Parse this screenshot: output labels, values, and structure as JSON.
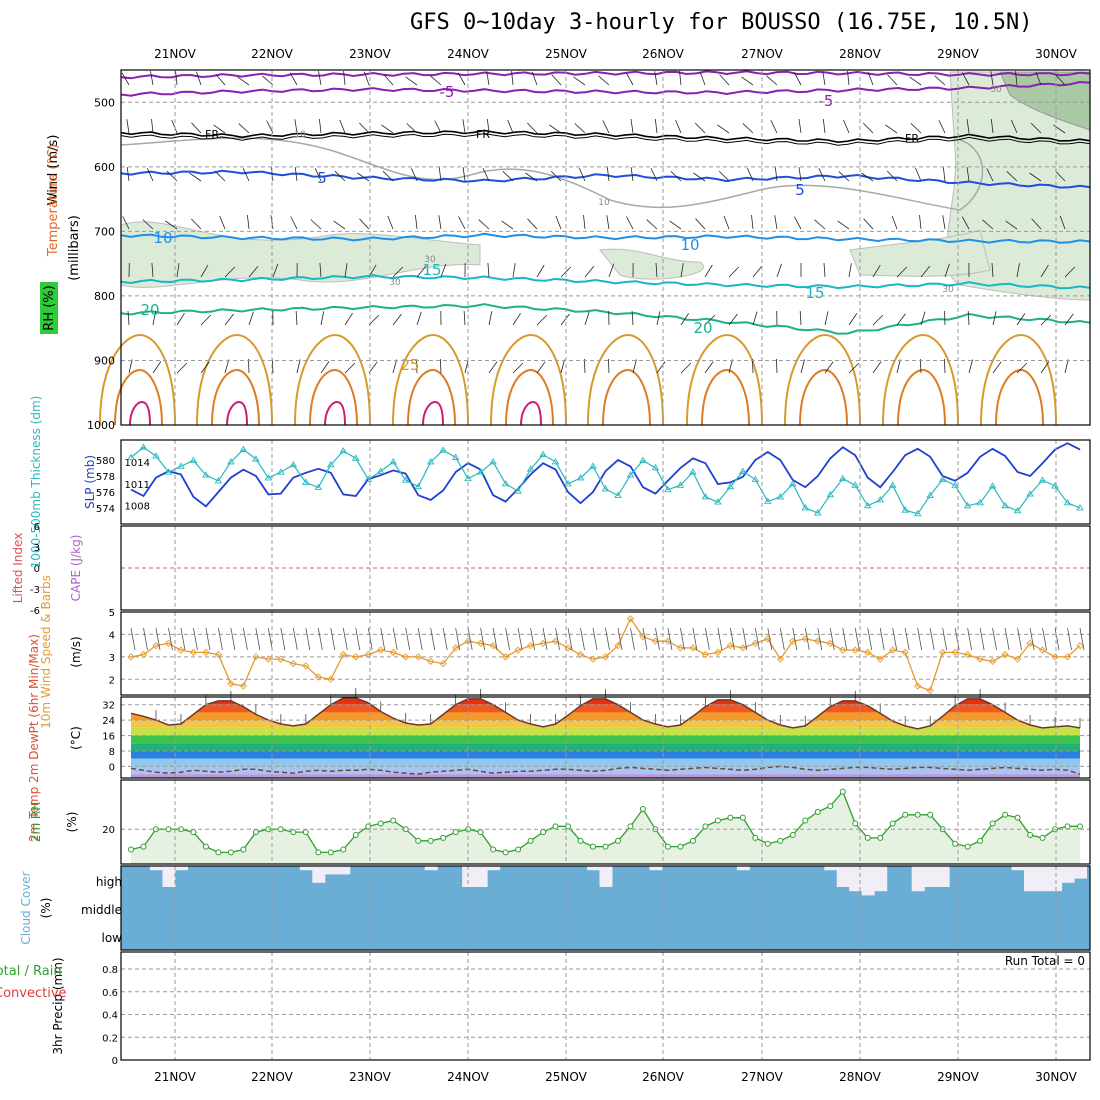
{
  "title": "GFS 0~10day 3-hourly for BOUSSO (16.75E, 10.5N)",
  "colors": {
    "grid": "#9a9a9a",
    "temperature_label": "#e0682c",
    "wind_label": "#000000",
    "rh_fill": "#dcebd8",
    "rh_dark": "#a9c8a4",
    "purple": "#8b1fb0",
    "black": "#000000",
    "blue": "#1f4ed8",
    "lightblue": "#1e90e8",
    "cyan": "#17b7c4",
    "teal": "#1fb08a",
    "thickness": "#1f3fd0",
    "slp": "#28b9c0",
    "li_zero": "#e06060",
    "wind10m": "#e59a2e",
    "cloud": "#6aaed6",
    "rh2m_line": "#2ea02e",
    "rh2m_fill": "#e6f1e2"
  },
  "chart_data": {
    "x_tick_labels": [
      "21NOV",
      "22NOV",
      "23NOV",
      "24NOV",
      "25NOV",
      "26NOV",
      "27NOV",
      "28NOV",
      "29NOV",
      "30NOV"
    ],
    "time_step_hours": 3,
    "panels": [
      {
        "id": "upper_air",
        "type": "contour",
        "ylabel_wind": "Wind (m/s)",
        "ylabel_temp": "Temperature (°C)",
        "ylabel_rh": "RH (%)",
        "ylabel_units": "(millibars)",
        "yticks": [
          500,
          600,
          700,
          800,
          900,
          1000
        ],
        "ylim": [
          450,
          1000
        ],
        "isotherm_labels": [
          {
            "text": "-5",
            "series": "purple"
          },
          {
            "text": "-5",
            "series": "purple"
          },
          {
            "text": "FR",
            "series": "black"
          },
          {
            "text": "FR",
            "series": "black"
          },
          {
            "text": "FR",
            "series": "black"
          },
          {
            "text": "5",
            "series": "blue"
          },
          {
            "text": "5",
            "series": "blue"
          },
          {
            "text": "10",
            "series": "lightblue"
          },
          {
            "text": "10",
            "series": "lightblue"
          },
          {
            "text": "15",
            "series": "cyan"
          },
          {
            "text": "15",
            "series": "cyan"
          },
          {
            "text": "20",
            "series": "teal"
          },
          {
            "text": "20",
            "series": "teal"
          },
          {
            "text": "25",
            "series": "orange"
          }
        ],
        "rh_labels": [
          "10",
          "10",
          "30",
          "30",
          "30",
          "30"
        ],
        "isotherms": [
          {
            "name": "purple_-5",
            "level": [
              488,
              483,
              480,
              482,
              484,
              485,
              481,
              478,
              470
            ]
          },
          {
            "name": "purple_top",
            "level": [
              461,
              458,
              457,
              456,
              455,
              454,
              455,
              457,
              456
            ]
          },
          {
            "name": "FR",
            "level": [
              547,
              552,
              548,
              546,
              550,
              556,
              560,
              552,
              560
            ]
          },
          {
            "name": "5C",
            "level": [
              610,
              608,
              617,
              622,
              613,
              620,
              614,
              625,
              632
            ]
          },
          {
            "name": "10C",
            "level": [
              706,
              710,
              712,
              706,
              710,
              708,
              712,
              715,
              716
            ]
          },
          {
            "name": "15C",
            "level": [
              778,
              775,
              770,
              772,
              778,
              783,
              786,
              781,
              788
            ]
          },
          {
            "name": "20C",
            "level": [
              827,
              822,
              818,
              815,
              825,
              840,
              858,
              830,
              842
            ]
          }
        ]
      },
      {
        "id": "thickness_slp",
        "type": "line",
        "ylabel_left": "1000-500mb Thickness (dm)",
        "ylabel_right": "SLP (mb)",
        "left_ticks": [
          574,
          576,
          578,
          580
        ],
        "right_ticks": [
          1008,
          1011,
          1014
        ],
        "series": [
          {
            "name": "Thickness",
            "axis": "left",
            "values": [
              576.3,
              575.5,
              577.8,
              578.6,
              578.2,
              575.4,
              574.2,
              576.0,
              577.8,
              578.8,
              578.0,
              575.7,
              575.8,
              577.8,
              578.4,
              578.9,
              578.4,
              575.7,
              575.5,
              577.6,
              578.1,
              578.7,
              578.3,
              575.6,
              575.0,
              576.2,
              578.5,
              579.6,
              578.8,
              575.6,
              574.8,
              576.4,
              578.2,
              579.6,
              578.8,
              576.0,
              574.6,
              576.0,
              578.6,
              580.0,
              579.2,
              576.6,
              575.8,
              577.4,
              579.0,
              580.2,
              579.6,
              577.0,
              577.2,
              577.9,
              580.0,
              581.0,
              580.0,
              577.5,
              576.6,
              578.0,
              580.2,
              581.6,
              580.6,
              577.8,
              576.6,
              578.5,
              580.6,
              581.4,
              580.4,
              578.0,
              577.4,
              578.4,
              580.4,
              581.4,
              580.5,
              578.5,
              578.0,
              579.6,
              581.3,
              582.1,
              581.3
            ]
          },
          {
            "name": "SLP",
            "axis": "right",
            "values": [
              1014.6,
              1016.0,
              1014.8,
              1012.6,
              1013.4,
              1014.2,
              1012.2,
              1011.4,
              1014.0,
              1015.7,
              1014.4,
              1011.8,
              1012.6,
              1013.6,
              1011.2,
              1010.5,
              1013.6,
              1015.5,
              1014.5,
              1011.6,
              1012.7,
              1014.0,
              1011.5,
              1010.6,
              1014.0,
              1015.6,
              1014.6,
              1011.7,
              1012.6,
              1014.0,
              1011.0,
              1010.0,
              1013.0,
              1015.0,
              1014.0,
              1011.0,
              1011.8,
              1013.4,
              1010.3,
              1009.4,
              1012.2,
              1014.2,
              1013.2,
              1010.2,
              1010.8,
              1012.6,
              1009.2,
              1008.5,
              1010.6,
              1012.7,
              1011.6,
              1008.6,
              1009.2,
              1011.0,
              1007.7,
              1007.0,
              1009.5,
              1011.7,
              1010.8,
              1008.0,
              1008.8,
              1010.8,
              1007.4,
              1006.9,
              1009.4,
              1011.6,
              1010.8,
              1008.0,
              1008.4,
              1010.7,
              1008.0,
              1007.3,
              1009.6,
              1011.5,
              1010.7,
              1008.4,
              1007.7
            ]
          }
        ]
      },
      {
        "id": "stability",
        "type": "line",
        "ylabel_left": "Lifted Index",
        "ylabel_right": "CAPE (J/kg)",
        "left_ticks": [
          "-6",
          "-3",
          "0",
          "3",
          "6"
        ],
        "right_ticks": [],
        "li_zero_line": 0
      },
      {
        "id": "wind10m",
        "type": "line",
        "ylabel": "10m Wind Speed & Barbs",
        "ylabel_units": "(m/s)",
        "yticks": [
          2,
          3,
          4,
          5
        ],
        "ylim": [
          1.3,
          5
        ],
        "series": [
          {
            "name": "Speed",
            "values": [
              3.0,
              3.1,
              3.5,
              3.6,
              3.3,
              3.2,
              3.2,
              3.1,
              1.8,
              1.7,
              3.0,
              2.9,
              2.9,
              2.7,
              2.6,
              2.1,
              2.0,
              3.1,
              3.0,
              3.1,
              3.3,
              3.2,
              3.0,
              3.0,
              2.8,
              2.7,
              3.4,
              3.7,
              3.6,
              3.5,
              3.0,
              3.3,
              3.5,
              3.6,
              3.7,
              3.4,
              3.1,
              2.9,
              3.0,
              3.5,
              4.7,
              3.9,
              3.7,
              3.7,
              3.4,
              3.4,
              3.1,
              3.2,
              3.5,
              3.4,
              3.6,
              3.8,
              2.9,
              3.7,
              3.8,
              3.7,
              3.6,
              3.3,
              3.3,
              3.2,
              2.9,
              3.3,
              3.2,
              1.7,
              1.5,
              3.2,
              3.2,
              3.1,
              2.9,
              2.8,
              3.1,
              2.9,
              3.6,
              3.3,
              3.0,
              3.0,
              3.5
            ]
          }
        ]
      },
      {
        "id": "temp2m",
        "type": "area",
        "ylabel": "2m Temp 2m DewPt (6hr Min/Max)",
        "ylabel_units": "(°C)",
        "yticks": [
          0,
          8,
          16,
          24,
          32
        ],
        "ylim": [
          -6,
          36
        ],
        "series": [
          {
            "name": "Temp",
            "values": [
              27.5,
              26,
              24,
              21.5,
              22,
              27,
              32,
              34,
              34,
              31,
              27,
              24,
              22,
              21,
              22,
              27,
              32,
              35.5,
              35.5,
              33,
              28.5,
              25,
              22.5,
              21.5,
              22,
              27,
              32,
              35,
              35,
              32,
              28,
              24,
              22,
              20.5,
              22,
              26.5,
              31.5,
              35,
              35,
              32,
              28,
              24,
              22,
              20.5,
              21.5,
              26,
              31,
              34.5,
              34.5,
              32,
              28,
              24,
              21.5,
              20,
              21,
              26,
              31,
              34,
              34,
              31.5,
              27.5,
              23.5,
              21,
              19.5,
              21,
              26,
              31.5,
              35,
              35,
              32,
              28,
              24,
              21.5,
              20,
              20.5,
              21,
              20
            ]
          },
          {
            "name": "DewPt",
            "values": [
              -1,
              -2,
              -3,
              -3.5,
              -3,
              -2,
              -2.5,
              -3,
              -2.5,
              -1.5,
              -1.5,
              -2.5,
              -3,
              -3.5,
              -2.5,
              -2,
              -2.5,
              -2,
              -2,
              -1.5,
              -2,
              -3,
              -3.5,
              -4,
              -3,
              -2.5,
              -2,
              -1.5,
              -2.5,
              -3.5,
              -3,
              -2.5,
              -2.5,
              -2,
              -1.5,
              -1.5,
              -2,
              -2.5,
              -2,
              -1,
              -0.5,
              -1,
              -1.5,
              -2,
              -1.5,
              -1,
              -0.5,
              -1,
              -1.5,
              -2,
              -1.5,
              -0.5,
              0,
              -0.5,
              -1.5,
              -2,
              -1.5,
              -1,
              -0.5,
              -0.5,
              -1,
              -1.5,
              -1,
              -0.5,
              -0.5,
              -1,
              -1.5,
              -2,
              -1.5,
              -1,
              -0.5,
              -1,
              -1.5,
              -2,
              -1.5,
              -2,
              -4
            ]
          }
        ]
      },
      {
        "id": "rh2m",
        "type": "area",
        "ylabel": "2m RH",
        "ylabel_units": "(%)",
        "yticks": [
          20
        ],
        "ylim": [
          8,
          37
        ],
        "series": [
          {
            "name": "RH",
            "values": [
              13,
              14,
              20,
              20,
              20,
              19,
              14,
              12,
              12,
              13,
              19,
              20,
              20,
              19,
              19,
              12,
              12,
              13,
              18,
              21,
              22,
              23,
              20,
              16,
              16,
              17,
              19,
              20,
              19,
              13,
              12,
              13,
              16,
              19,
              21,
              21,
              16,
              14,
              14,
              16,
              21,
              27,
              20,
              14,
              14,
              16,
              21,
              23,
              24,
              24,
              17,
              15,
              16,
              18,
              23,
              26,
              28,
              33,
              22,
              17,
              17,
              22,
              25,
              25,
              25,
              20,
              15,
              14,
              16,
              22,
              25,
              24,
              18,
              17,
              20,
              21,
              21
            ]
          }
        ]
      },
      {
        "id": "cloud",
        "type": "bar",
        "ylabel": "Cloud Cover",
        "ylabel_units": "(%)",
        "levels": [
          "high",
          "middle",
          "low"
        ],
        "series": [
          {
            "name": "High cloud clear gap",
            "values": [
              0,
              0,
              5,
              25,
              5,
              0,
              0,
              0,
              0,
              0,
              0,
              0,
              0,
              0,
              5,
              20,
              10,
              10,
              0,
              0,
              0,
              0,
              0,
              0,
              5,
              0,
              0,
              25,
              25,
              5,
              0,
              0,
              0,
              0,
              0,
              0,
              0,
              5,
              25,
              0,
              0,
              0,
              5,
              0,
              0,
              0,
              0,
              0,
              0,
              5,
              0,
              0,
              0,
              0,
              0,
              0,
              5,
              25,
              30,
              35,
              30,
              0,
              0,
              30,
              25,
              25,
              0,
              0,
              0,
              0,
              0,
              5,
              30,
              30,
              30,
              20,
              15
            ]
          }
        ]
      },
      {
        "id": "precip",
        "type": "bar",
        "ylabel": "3hr Precip (mm)",
        "ylabel_left": "Total / Rain",
        "ylabel_left2": "Convective",
        "yticks": [
          "0",
          "0.2",
          "0.4",
          "0.6",
          "0.8"
        ],
        "ylim": [
          0,
          0.95
        ],
        "run_total": "Run Total = 0",
        "series": [
          {
            "name": "Precip",
            "values": []
          }
        ]
      }
    ]
  }
}
